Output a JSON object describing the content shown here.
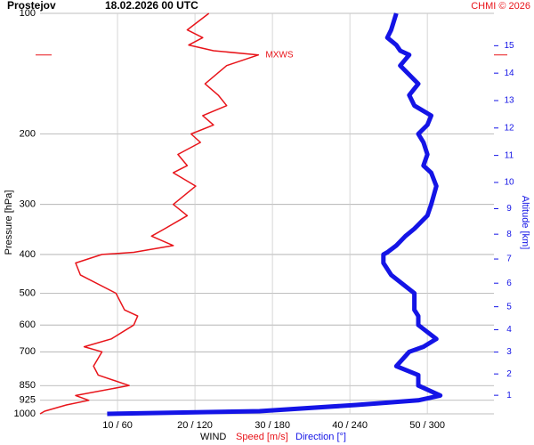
{
  "chart_data": {
    "type": "line",
    "title": "Prostejov",
    "subtitle": "18.02.2026 00 UTC",
    "credit": "CHMI © 2026",
    "y_label": "Pressure [hPa]",
    "y2_label": "Altitude [km]",
    "x_label": "WIND",
    "x_label_speed": "Speed [m/s]",
    "x_label_direction": "Direction [°]",
    "annotation": "MXWS",
    "y_log": true,
    "ylim": [
      100,
      1000
    ],
    "yticks": [
      100,
      200,
      300,
      400,
      500,
      600,
      700,
      850,
      925,
      1000
    ],
    "y2ticks": [
      1,
      2,
      3,
      4,
      5,
      6,
      7,
      8,
      9,
      10,
      11,
      12,
      13,
      14,
      15
    ],
    "xlim": [
      0,
      58.6
    ],
    "x2lim": [
      0,
      351.6
    ],
    "xticks": [
      {
        "value": 10,
        "label": "10 / 60"
      },
      {
        "value": 20,
        "label": "20 / 120"
      },
      {
        "value": 30,
        "label": "30 / 180"
      },
      {
        "value": 40,
        "label": "40 / 240"
      },
      {
        "value": 50,
        "label": "50 / 300"
      }
    ],
    "grid": true,
    "y": [
      100,
      110,
      115,
      120,
      124,
      127,
      135,
      150,
      160,
      170,
      180,
      190,
      200,
      210,
      225,
      240,
      250,
      270,
      300,
      320,
      345,
      360,
      380,
      395,
      400,
      420,
      450,
      500,
      550,
      570,
      600,
      650,
      680,
      700,
      760,
      800,
      850,
      900,
      925,
      950,
      985,
      1000
    ],
    "series": [
      {
        "name": "Speed [m/s]",
        "color": "#e8141a",
        "axis": "x",
        "width": 1.5,
        "values": [
          21.8,
          19.0,
          21.0,
          19.2,
          22.4,
          28.2,
          24.1,
          21.3,
          23.0,
          24.1,
          21.0,
          22.4,
          19.5,
          20.7,
          17.8,
          19.0,
          17.2,
          20.1,
          17.2,
          19.0,
          16.1,
          14.4,
          17.2,
          12.1,
          8.0,
          4.6,
          5.2,
          9.8,
          10.9,
          12.6,
          12.1,
          9.2,
          5.7,
          8.0,
          6.9,
          7.5,
          11.5,
          4.6,
          6.3,
          3.4,
          0.6,
          0
        ]
      },
      {
        "name": "Direction [°]",
        "color": "#1414e6",
        "axis": "x2",
        "width": 5,
        "values": [
          276,
          272,
          269,
          276,
          279,
          286,
          279,
          293,
          286,
          290,
          303,
          300,
          293,
          297,
          300,
          297,
          303,
          307,
          303,
          300,
          290,
          283,
          276,
          269,
          266,
          266,
          272,
          290,
          290,
          293,
          293,
          307,
          297,
          286,
          276,
          293,
          293,
          310,
          293,
          245,
          170,
          52
        ]
      }
    ]
  }
}
